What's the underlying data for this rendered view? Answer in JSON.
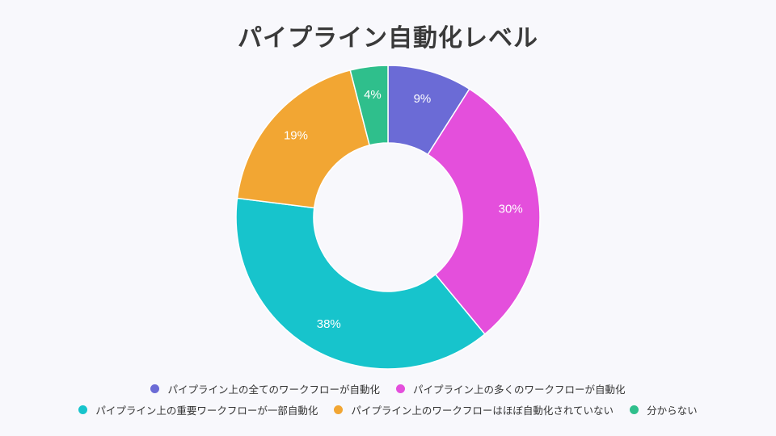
{
  "chart_data": {
    "type": "pie",
    "title": "パイプライン自動化レベル",
    "categories": [
      "パイプライン上の全てのワークフローが自動化",
      "パイプライン上の多くのワークフローが自動化",
      "パイプライン上の重要ワークフローが一部自動化",
      "パイプライン上のワークフローはほぼ自動化されていない",
      "分からない"
    ],
    "values": [
      9,
      30,
      38,
      19,
      4
    ],
    "labels": [
      "9%",
      "30%",
      "38%",
      "19%",
      "4%"
    ],
    "colors": [
      "#6b6bd6",
      "#e44fdc",
      "#17c4cc",
      "#f2a633",
      "#2fbf8c"
    ],
    "donut": true,
    "legend_position": "bottom"
  }
}
